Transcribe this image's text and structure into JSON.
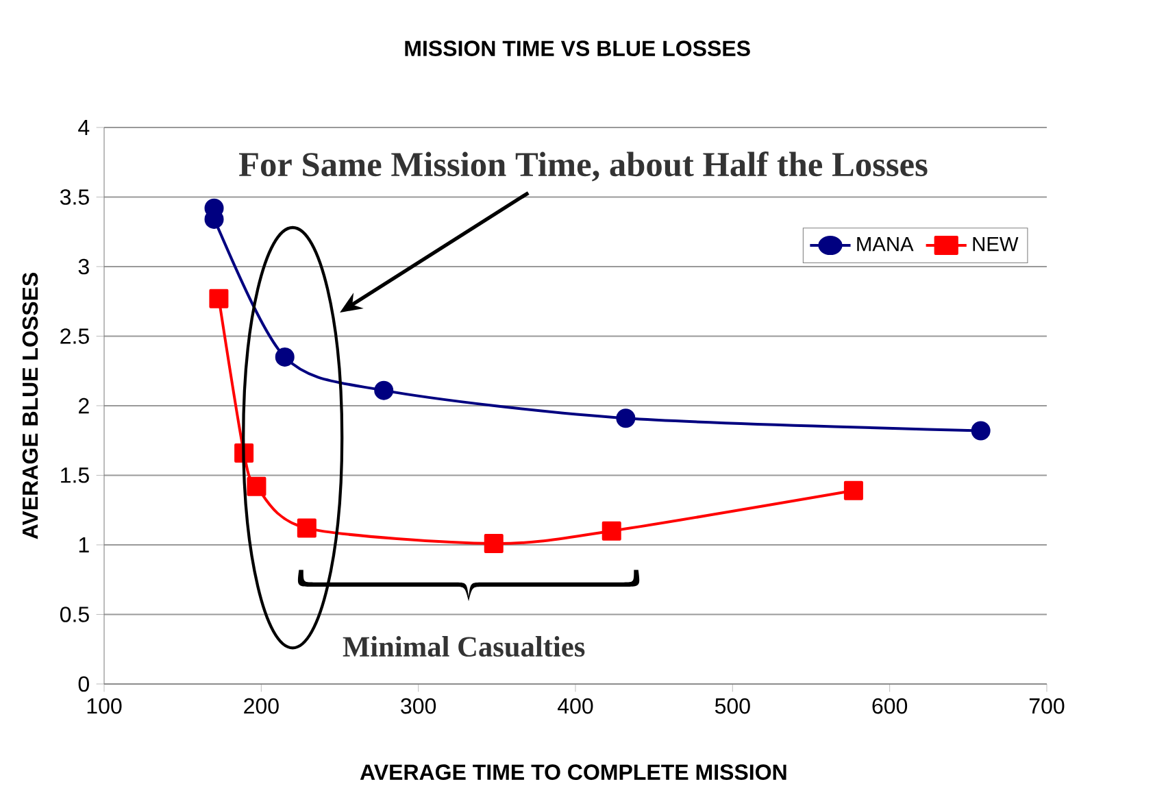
{
  "chart_data": {
    "type": "line",
    "title": "MISSION TIME VS BLUE LOSSES",
    "xlabel": "AVERAGE TIME TO COMPLETE MISSION",
    "ylabel": "AVERAGE BLUE LOSSES",
    "series": [
      {
        "name": "MANA",
        "color": "#000080",
        "marker": "circle",
        "x": [
          170,
          170,
          215,
          278,
          432,
          658
        ],
        "values": [
          3.42,
          3.34,
          2.35,
          2.11,
          1.91,
          1.82
        ]
      },
      {
        "name": "NEW",
        "color": "#ff0000",
        "marker": "square",
        "x": [
          173,
          189,
          197,
          229,
          348,
          423,
          577
        ],
        "values": [
          2.77,
          1.66,
          1.42,
          1.12,
          1.01,
          1.1,
          1.39
        ]
      }
    ],
    "xlim": [
      100,
      700
    ],
    "xticks": [
      100,
      200,
      300,
      400,
      500,
      600,
      700
    ],
    "ylim": [
      0,
      4
    ],
    "yticks": [
      0,
      0.5,
      1,
      1.5,
      2,
      2.5,
      3,
      3.5,
      4
    ],
    "grid": "y",
    "legend": "top right",
    "annotations": [
      "For Same Mission Time, about Half the Losses",
      "Minimal Casualties"
    ]
  }
}
